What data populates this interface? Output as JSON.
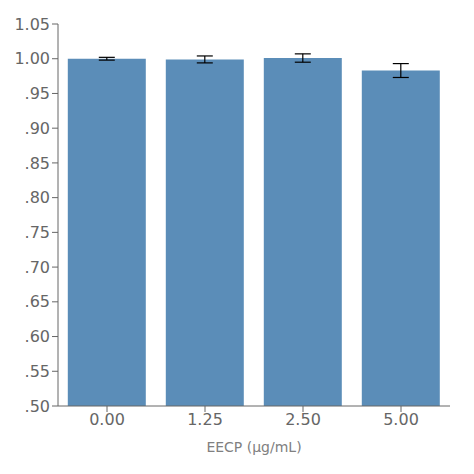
{
  "chart_data": {
    "type": "bar",
    "categories": [
      "0.00",
      "1.25",
      "2.50",
      "5.00"
    ],
    "values": [
      1.0,
      0.999,
      1.001,
      0.983
    ],
    "errors": [
      0.002,
      0.005,
      0.006,
      0.01
    ],
    "color": "#5B8DB8",
    "xlabel": "EECP (μg/mL)",
    "ylim": [
      0.5,
      1.05
    ],
    "yticks": [
      {
        "value": 0.5,
        "label": ".50"
      },
      {
        "value": 0.55,
        "label": ".55"
      },
      {
        "value": 0.6,
        "label": ".60"
      },
      {
        "value": 0.65,
        "label": ".65"
      },
      {
        "value": 0.7,
        "label": ".70"
      },
      {
        "value": 0.75,
        "label": ".75"
      },
      {
        "value": 0.8,
        "label": ".80"
      },
      {
        "value": 0.85,
        "label": ".85"
      },
      {
        "value": 0.9,
        "label": ".90"
      },
      {
        "value": 0.95,
        "label": ".95"
      },
      {
        "value": 1.0,
        "label": "1.00"
      },
      1.05
    ],
    "grid": false
  }
}
